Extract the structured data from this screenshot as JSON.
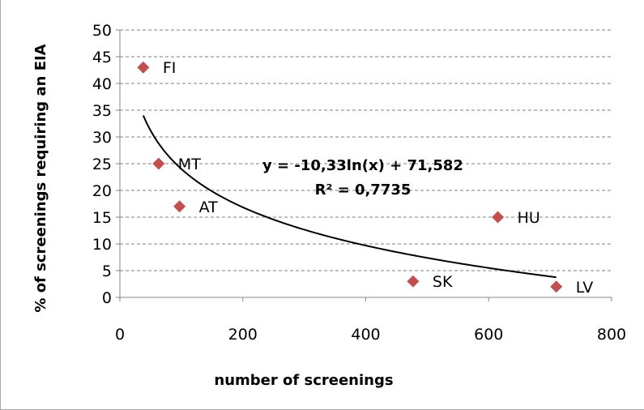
{
  "chart_data": {
    "type": "scatter",
    "xlabel": "number of screenings",
    "ylabel": "% of screenings requiring an EIA",
    "xlim": [
      0,
      800
    ],
    "ylim": [
      0,
      50
    ],
    "x_ticks": [
      0,
      200,
      400,
      600,
      800
    ],
    "y_ticks": [
      0,
      5,
      10,
      15,
      20,
      25,
      30,
      35,
      40,
      45,
      50
    ],
    "grid": "horizontal dashed",
    "marker_color": "#c0504d",
    "points": [
      {
        "label": "FI",
        "x": 38,
        "y": 43
      },
      {
        "label": "MT",
        "x": 63,
        "y": 25
      },
      {
        "label": "AT",
        "x": 97,
        "y": 17
      },
      {
        "label": "SK",
        "x": 477,
        "y": 3
      },
      {
        "label": "HU",
        "x": 615,
        "y": 15
      },
      {
        "label": "LV",
        "x": 710,
        "y": 2
      }
    ],
    "trendline": {
      "type": "logarithmic",
      "a": -10.33,
      "b": 71.582,
      "x_range": [
        38,
        710
      ],
      "equation": "y = -10,33ln(x) + 71,582",
      "r_squared": "R² = 0,7735"
    }
  }
}
